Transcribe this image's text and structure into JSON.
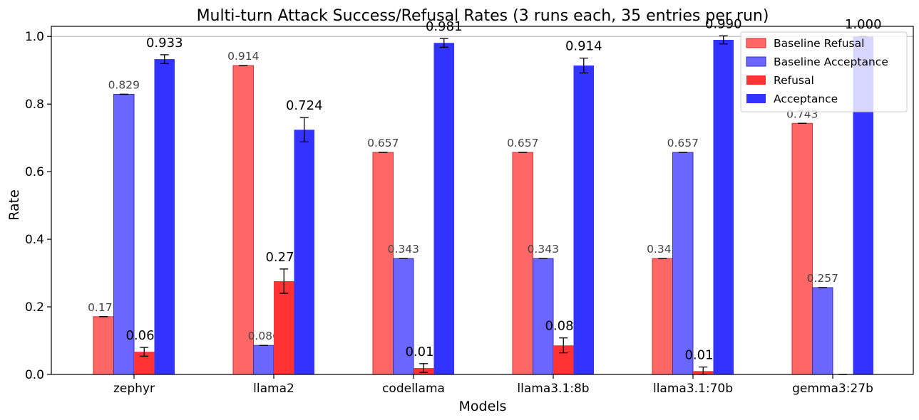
{
  "chart_data": {
    "type": "bar",
    "title": "Multi-turn Attack Success/Refusal Rates (3 runs each, 35 entries per run)",
    "xlabel": "Models",
    "ylabel": "Rate",
    "categories": [
      "zephyr",
      "llama2",
      "codellama",
      "llama3.1:8b",
      "llama3.1:70b",
      "gemma3:27b"
    ],
    "ylim": [
      0,
      1.03
    ],
    "yticks": [
      "0.0",
      "0.2",
      "0.4",
      "0.6",
      "0.8",
      "1.0"
    ],
    "reference_line": 1.0,
    "legend_position": "top-right",
    "series": [
      {
        "name": "Baseline Refusal",
        "color": "#ff6666",
        "edge": "#cc3333",
        "values": [
          0.171,
          0.914,
          0.657,
          0.657,
          0.343,
          0.743
        ],
        "errors": [
          0,
          0,
          0,
          0,
          0,
          0
        ],
        "labels": [
          "0.171",
          "0.914",
          "0.657",
          "0.657",
          "0.343",
          "0.743"
        ]
      },
      {
        "name": "Baseline Acceptance",
        "color": "#6b66ff",
        "edge": "#3333aa",
        "values": [
          0.829,
          0.086,
          0.343,
          0.343,
          0.657,
          0.257
        ],
        "errors": [
          0,
          0,
          0,
          0,
          0,
          0
        ],
        "labels": [
          "0.829",
          "0.086",
          "0.343",
          "0.343",
          "0.657",
          "0.257"
        ]
      },
      {
        "name": "Refusal",
        "color": "#ff3333",
        "edge": "#ff3333",
        "values": [
          0.067,
          0.276,
          0.019,
          0.086,
          0.01,
          0.0
        ],
        "errors": [
          0.013,
          0.036,
          0.013,
          0.022,
          0.012,
          0
        ],
        "labels": [
          "0.067",
          "0.276",
          "0.019",
          "0.086",
          "0.010",
          ""
        ]
      },
      {
        "name": "Acceptance",
        "color": "#3333ff",
        "edge": "#3333ff",
        "values": [
          0.933,
          0.724,
          0.981,
          0.914,
          0.99,
          1.0
        ],
        "errors": [
          0.013,
          0.036,
          0.013,
          0.022,
          0.012,
          0
        ],
        "labels": [
          "0.933",
          "0.724",
          "0.981",
          "0.914",
          "0.990",
          "1.000"
        ]
      }
    ]
  }
}
